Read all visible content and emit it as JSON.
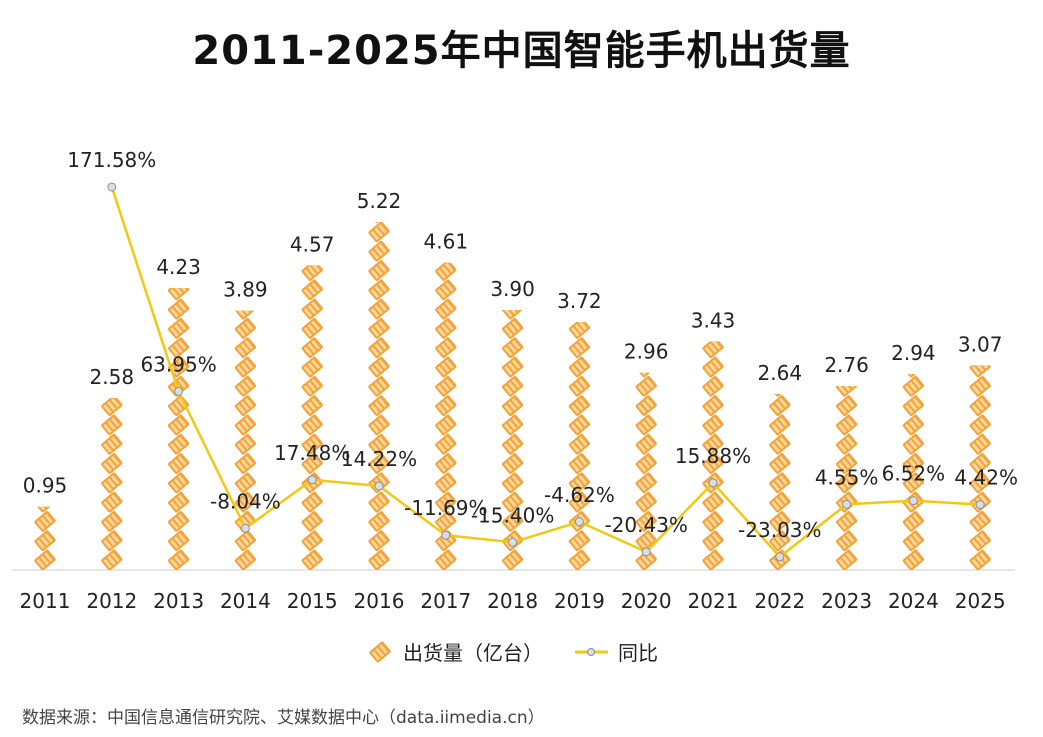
{
  "title": "2011-2025年中国智能手机出货量",
  "source": "数据来源：中国信息通信研究院、艾媒数据中心（data.iimedia.cn）",
  "colors": {
    "bar_icon": "#f5a23a",
    "bar_icon_light": "#fbd79a",
    "line": "#f2c811",
    "marker": "#d9dde3"
  },
  "chart_data": {
    "type": "bar+line",
    "title": "2011-2025年中国智能手机出货量",
    "categories": [
      "2011",
      "2012",
      "2013",
      "2014",
      "2015",
      "2016",
      "2017",
      "2018",
      "2019",
      "2020",
      "2021",
      "2022",
      "2023",
      "2024",
      "2025"
    ],
    "series": [
      {
        "name": "出货量（亿台）",
        "type": "pictorial-bar",
        "axis": "left",
        "values": [
          0.95,
          2.58,
          4.23,
          3.89,
          4.57,
          5.22,
          4.61,
          3.9,
          3.72,
          2.96,
          3.43,
          2.64,
          2.76,
          2.94,
          3.07
        ],
        "labels": [
          "0.95",
          "2.58",
          "4.23",
          "3.89",
          "4.57",
          "5.22",
          "4.61",
          "3.90",
          "3.72",
          "2.96",
          "3.43",
          "2.64",
          "2.76",
          "2.94",
          "3.07"
        ]
      },
      {
        "name": "同比",
        "type": "line",
        "axis": "right",
        "values": [
          null,
          171.58,
          63.95,
          -8.04,
          17.48,
          14.22,
          -11.69,
          -15.4,
          -4.62,
          -20.43,
          15.88,
          -23.03,
          4.55,
          6.52,
          4.42
        ],
        "labels": [
          "",
          "171.58%",
          "63.95%",
          "-8.04%",
          "17.48%",
          "14.22%",
          "-11.69%",
          "-15.40%",
          "-4.62%",
          "-20.43%",
          "15.88%",
          "-23.03%",
          "4.55%",
          "6.52%",
          "4.42%"
        ]
      }
    ],
    "ylim_left": [
      0,
      6
    ],
    "ylim_right": [
      -30,
      200
    ],
    "grid": false,
    "legend": "bottom-center"
  }
}
